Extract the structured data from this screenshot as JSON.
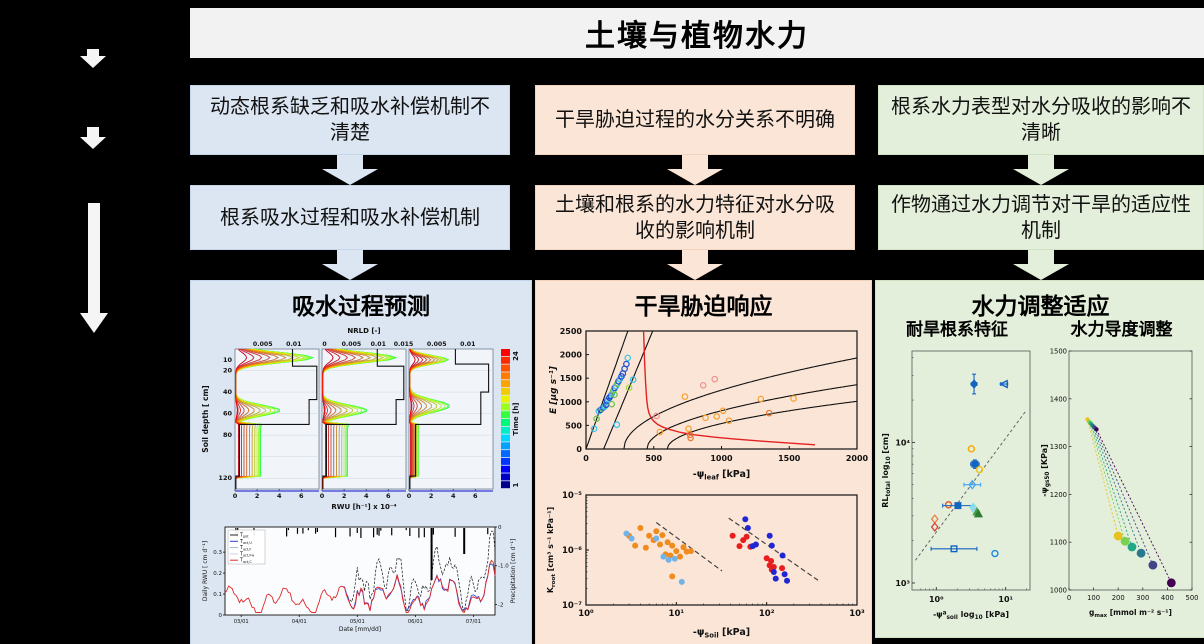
{
  "title": "土壤与植物水力",
  "theme_colors": {
    "blue": "#dce6f2",
    "peach": "#fbe5d6",
    "green": "#e3efda",
    "title_bar": "#f2f2f2",
    "background": "#000000"
  },
  "columns": [
    {
      "theme_color": "#dce6f2",
      "problem": "动态根系缺乏和吸水补偿机制不清楚",
      "mechanism": "根系吸水过程和吸水补偿机制",
      "panel_title": "吸水过程预测"
    },
    {
      "theme_color": "#fbe5d6",
      "problem": "干旱胁迫过程的水分关系不明确",
      "mechanism": "土壤和根系的水力特征对水分吸收的影响机制",
      "panel_title": "干旱胁迫响应"
    },
    {
      "theme_color": "#e3efda",
      "problem": "根系水力表型对水分吸收的影响不清晰",
      "mechanism": "作物通过水力调节对干旱的适应性机制",
      "panel_title": "水力调整适应",
      "sub_titles": [
        "耐旱根系特征",
        "水力导度调整"
      ]
    }
  ],
  "chart_data": {
    "rwu_profiles": {
      "type": "line",
      "top_axis_label": "NRLD [-]",
      "top_ticks": [
        [
          "0.005",
          "0.01"
        ],
        [
          "0",
          "0.005",
          "0.01",
          "0.015"
        ],
        [
          "0.005",
          "0.01"
        ]
      ],
      "top_tick_fracs": [
        [
          0.33,
          0.7
        ],
        [
          0.03,
          0.35,
          0.67,
          0.97
        ],
        [
          0.33,
          0.7
        ]
      ],
      "ylabel": "Soil depth [ cm]",
      "yticks": [
        10,
        20,
        40,
        60,
        80,
        120
      ],
      "ymax": 130,
      "xlabel": "RWU [h⁻¹] x 10⁻⁴",
      "xticks": [
        0,
        2,
        4,
        6
      ],
      "xmax": 7.6,
      "n_times": 24,
      "colorbar": {
        "label": "Time [h]",
        "top": "24",
        "bottom": "1"
      },
      "black_profiles": [
        [
          [
            5.2,
            0
          ],
          [
            5.2,
            16
          ],
          [
            7.4,
            16
          ],
          [
            7.4,
            47
          ],
          [
            6.7,
            47
          ],
          [
            6.7,
            70
          ],
          [
            0.4,
            70
          ],
          [
            0.4,
            118
          ],
          [
            0.08,
            118
          ],
          [
            0.08,
            130
          ]
        ],
        [
          [
            5.0,
            0
          ],
          [
            5.0,
            16
          ],
          [
            7.4,
            16
          ],
          [
            7.4,
            47
          ],
          [
            6.7,
            47
          ],
          [
            6.7,
            70
          ],
          [
            0.4,
            70
          ],
          [
            0.4,
            118
          ],
          [
            0.08,
            118
          ],
          [
            0.08,
            130
          ]
        ],
        [
          [
            4.2,
            0
          ],
          [
            4.2,
            14
          ],
          [
            7.2,
            14
          ],
          [
            7.2,
            40
          ],
          [
            6.5,
            40
          ],
          [
            6.5,
            70
          ],
          [
            0.6,
            70
          ],
          [
            0.6,
            118
          ],
          [
            0.08,
            118
          ],
          [
            0.08,
            130
          ]
        ]
      ]
    },
    "daily_rwu": {
      "type": "line",
      "ylabel_left": "Daily RWU [ cm d⁻¹]",
      "ylabel_right": "Precipitation [cm d⁻¹]",
      "xlabel": "Date [mm/dd]",
      "xticks": [
        "03/01",
        "04/01",
        "05/01",
        "06/01",
        "07/01"
      ],
      "yticks_left": [
        0,
        0.1,
        0.2,
        0.3
      ],
      "yticks_right": [
        "0",
        "-1.0",
        "-2"
      ],
      "legend": [
        {
          "label": "T",
          "sub": "pot",
          "color": "#222222"
        },
        {
          "label": "T",
          "sub": "act,U",
          "color": "#2f3bd3"
        },
        {
          "label": "T",
          "sub": "act,F",
          "color": "#9fb6c9"
        },
        {
          "label": "T",
          "sub": "act,Fw",
          "color": "#c9d4e2"
        },
        {
          "label": "T",
          "sub": "act,C",
          "color": "#e02929"
        }
      ],
      "series_colors": {
        "potential": "#111111",
        "actual": "#2f3bd3",
        "control": "#e02929"
      }
    },
    "transpiration": {
      "type": "scatter",
      "ylabel": "E [μg s⁻¹]",
      "xlabel_parts": [
        [
          "-ψ",
          0
        ],
        [
          "leaf",
          1
        ],
        [
          " [kPa]",
          0
        ]
      ],
      "xlim": [
        0,
        2000
      ],
      "ylim": [
        0,
        2500
      ],
      "xticks": [
        0,
        500,
        1000,
        1500,
        2000
      ],
      "yticks": [
        0,
        500,
        1000,
        1500,
        2000,
        2500
      ],
      "black_curves": [
        {
          "kind": "lin",
          "x0": 0,
          "k": 8.1
        },
        {
          "kind": "lin",
          "x0": 130,
          "k": 6.9
        },
        {
          "kind": "sqrt",
          "x0": 280,
          "k": 46.5
        },
        {
          "kind": "sqrt",
          "x0": 450,
          "k": 34.6
        },
        {
          "kind": "sqrt",
          "x0": 600,
          "k": 27
        }
      ],
      "red_curve": [
        [
          425,
          2500
        ],
        [
          432,
          1900
        ],
        [
          440,
          1400
        ],
        [
          448,
          1050
        ],
        [
          455,
          880
        ],
        [
          465,
          760
        ],
        [
          480,
          660
        ],
        [
          500,
          590
        ],
        [
          530,
          520
        ],
        [
          570,
          460
        ],
        [
          620,
          410
        ],
        [
          700,
          350
        ],
        [
          800,
          300
        ],
        [
          950,
          250
        ],
        [
          1100,
          210
        ],
        [
          1300,
          165
        ],
        [
          1500,
          125
        ],
        [
          1690,
          90
        ]
      ],
      "points": [
        [
          60,
          430,
          "#35c3ef"
        ],
        [
          78,
          640,
          "#6abf4b"
        ],
        [
          95,
          800,
          "#35c3ef"
        ],
        [
          108,
          830,
          "#1e50d2"
        ],
        [
          118,
          860,
          "#6abf4b"
        ],
        [
          128,
          880,
          "#1e50d2"
        ],
        [
          138,
          900,
          "#35c3ef"
        ],
        [
          148,
          935,
          "#1e50d2"
        ],
        [
          155,
          1015,
          "#1e50d2"
        ],
        [
          163,
          1055,
          "#35c3ef"
        ],
        [
          172,
          1085,
          "#1e50d2"
        ],
        [
          182,
          1125,
          "#1e50d2"
        ],
        [
          192,
          1175,
          "#35c3ef"
        ],
        [
          202,
          1235,
          "#6abf4b"
        ],
        [
          212,
          1295,
          "#1e50d2"
        ],
        [
          222,
          1335,
          "#35c3ef"
        ],
        [
          232,
          1385,
          "#6abf4b"
        ],
        [
          240,
          1435,
          "#1e50d2"
        ],
        [
          250,
          1480,
          "#35c3ef"
        ],
        [
          262,
          1540,
          "#1e50d2"
        ],
        [
          272,
          1600,
          "#1e50d2"
        ],
        [
          285,
          1700,
          "#1e50d2"
        ],
        [
          298,
          1800,
          "#1e50d2"
        ],
        [
          308,
          1930,
          "#35c3ef"
        ],
        [
          228,
          515,
          "#35c3ef"
        ],
        [
          318,
          1300,
          "#9ade3b"
        ],
        [
          348,
          1470,
          "#35c3ef"
        ],
        [
          210,
          1150,
          "#6abf4b"
        ],
        [
          190,
          950,
          "#6abf4b"
        ],
        [
          520,
          700,
          "#f0908d"
        ],
        [
          545,
          360,
          "#f5a033"
        ],
        [
          730,
          1110,
          "#f5a033"
        ],
        [
          757,
          430,
          "#f5a033"
        ],
        [
          768,
          300,
          "#e8762c"
        ],
        [
          772,
          235,
          "#e8762c"
        ],
        [
          865,
          1350,
          "#f0908d"
        ],
        [
          882,
          660,
          "#f5a033"
        ],
        [
          950,
          1480,
          "#f0908d"
        ],
        [
          965,
          690,
          "#f5a033"
        ],
        [
          1012,
          810,
          "#f5a033"
        ],
        [
          1055,
          600,
          "#f5a033"
        ],
        [
          1290,
          1060,
          "#f5a033"
        ],
        [
          1352,
          760,
          "#e8762c"
        ],
        [
          1532,
          1070,
          "#f5a033"
        ]
      ]
    },
    "kroot": {
      "type": "scatter",
      "xlabel_parts": [
        [
          "-ψ",
          0
        ],
        [
          "Soil",
          1
        ],
        [
          " [kPa]",
          0
        ]
      ],
      "ylabel_parts": [
        [
          "K",
          0
        ],
        [
          "root",
          1
        ],
        [
          " [cm³ s⁻¹ kPa⁻¹]",
          0
        ]
      ],
      "xticks": [
        "10⁰",
        "10¹",
        "10²",
        "10³"
      ],
      "yticks": [
        "10⁻⁵",
        "10⁻⁶",
        "10⁻⁷"
      ],
      "groups": [
        {
          "color": "#f08c1e",
          "points": [
            [
              3,
              -5.74
            ],
            [
              3.5,
              -5.92
            ],
            [
              4,
              -5.6
            ],
            [
              4.6,
              -5.96
            ],
            [
              5,
              -5.74
            ],
            [
              5.6,
              -5.82
            ],
            [
              6,
              -5.66
            ],
            [
              6.6,
              -5.9
            ],
            [
              7,
              -5.73
            ],
            [
              7.6,
              -6.08
            ],
            [
              8,
              -5.86
            ],
            [
              8.6,
              -6.1
            ],
            [
              9,
              -5.92
            ],
            [
              9,
              -6.48
            ],
            [
              10,
              -6.02
            ],
            [
              11,
              -6.12
            ],
            [
              12,
              -5.95
            ],
            [
              13,
              -6.03
            ],
            [
              14.5,
              -6.02
            ]
          ]
        },
        {
          "color": "#74b3e8",
          "points": [
            [
              2.8,
              -5.7
            ],
            [
              3.2,
              -5.79
            ],
            [
              6,
              -5.79
            ],
            [
              7.2,
              -6.12
            ],
            [
              8.2,
              -6.18
            ],
            [
              9.6,
              -6.16
            ],
            [
              11.5,
              -6.58
            ]
          ]
        },
        {
          "color": "#e81e1e",
          "points": [
            [
              42,
              -5.74
            ],
            [
              50,
              -5.93
            ],
            [
              55,
              -5.82
            ],
            [
              60,
              -5.76
            ],
            [
              66,
              -5.94
            ],
            [
              100,
              -6.15
            ],
            [
              108,
              -6.28
            ],
            [
              114,
              -6.36
            ],
            [
              120,
              -6.31
            ],
            [
              148,
              -6.33
            ],
            [
              112,
              -6.2
            ]
          ]
        },
        {
          "color": "#2026d4",
          "points": [
            [
              58,
              -5.44
            ],
            [
              62,
              -5.6
            ],
            [
              70,
              -5.93
            ],
            [
              76,
              -5.9
            ],
            [
              108,
              -5.74
            ],
            [
              114,
              -5.92
            ],
            [
              120,
              -6.4
            ],
            [
              126,
              -6.52
            ],
            [
              158,
              -6.44
            ],
            [
              168,
              -6.56
            ],
            [
              150,
              -6.1
            ]
          ]
        }
      ],
      "dashed_lines": [
        [
          [
            6,
            -5.5
          ],
          [
            32,
            -6.38
          ]
        ],
        [
          [
            38,
            -5.42
          ],
          [
            370,
            -6.55
          ]
        ]
      ]
    },
    "root_traits": {
      "type": "scatter",
      "xlabel_parts": [
        [
          "-ψ",
          0
        ],
        [
          "a",
          2
        ],
        [
          "soil",
          1
        ],
        [
          " log",
          0
        ],
        [
          "10",
          1
        ],
        [
          " [kPa]",
          0
        ]
      ],
      "ylabel_parts": [
        [
          "RL",
          0
        ],
        [
          "total",
          1
        ],
        [
          "  log",
          0
        ],
        [
          "10",
          1
        ],
        [
          " [cm]",
          0
        ]
      ],
      "xticks": [
        "10⁰",
        "10¹"
      ],
      "yticks": [
        "10³",
        "10⁴"
      ],
      "trend": [
        [
          0.5,
          1450
        ],
        [
          20,
          17000
        ]
      ],
      "points": [
        {
          "x": 3.5,
          "y": 26000,
          "m": "d",
          "c": "#1565c0",
          "ey": 0.07,
          "ex": 0.04,
          "fill": 1
        },
        {
          "x": 9.5,
          "y": 26000,
          "m": "tl",
          "c": "#1565c0",
          "ex": 0.05
        },
        {
          "x": 3.2,
          "y": 9000,
          "m": "o",
          "c": "#f5a800"
        },
        {
          "x": 3.6,
          "y": 7000,
          "m": "s",
          "c": "#1565c0",
          "ex": 0.06,
          "ey": 0.03,
          "fill": 1
        },
        {
          "x": 4.2,
          "y": 6400,
          "m": "o",
          "c": "#f0c020"
        },
        {
          "x": 3.3,
          "y": 5000,
          "m": "d",
          "c": "#42a5f5",
          "ex": 0.12
        },
        {
          "x": 1.5,
          "y": 3600,
          "m": "o",
          "c": "#e05a2b"
        },
        {
          "x": 2.05,
          "y": 3550,
          "m": "s",
          "c": "#1565c0",
          "ex": 0.22,
          "fill": 1
        },
        {
          "x": 3.4,
          "y": 3450,
          "m": "d",
          "c": "#80deea",
          "fill": 1
        },
        {
          "x": 3.55,
          "y": 3300,
          "m": "d",
          "c": "#a5d6e7"
        },
        {
          "x": 3.85,
          "y": 3200,
          "m": "t",
          "c": "#43a047",
          "fill": 1
        },
        {
          "x": 4.05,
          "y": 3100,
          "m": "t",
          "c": "#2e7d32",
          "fill": 1
        },
        {
          "x": 0.95,
          "y": 2850,
          "m": "d",
          "c": "#ef7d45"
        },
        {
          "x": 0.95,
          "y": 2500,
          "m": "d",
          "c": "#d84336"
        },
        {
          "x": 1.8,
          "y": 1750,
          "m": "s",
          "c": "#1565c0",
          "ex": 0.33
        },
        {
          "x": 7,
          "y": 1620,
          "m": "o",
          "c": "#1e88e5"
        }
      ]
    },
    "conductance": {
      "type": "scatter",
      "xlabel_parts": [
        [
          "g",
          0
        ],
        [
          "max",
          1
        ],
        [
          " [mmol m⁻² s⁻¹]",
          0
        ]
      ],
      "ylabel_parts": [
        [
          "-ψ",
          0
        ],
        [
          "gs50",
          1
        ],
        [
          " [KPa]",
          0
        ]
      ],
      "xlim": [
        0,
        500
      ],
      "ylim": [
        1000,
        1500
      ],
      "xticks": [
        0,
        100,
        200,
        300,
        400,
        500
      ],
      "yticks": [
        1000,
        1100,
        1200,
        1300,
        1400,
        1500
      ],
      "upper": [
        [
          75,
          1357
        ],
        [
          82,
          1352
        ],
        [
          89,
          1348
        ],
        [
          96,
          1344
        ],
        [
          104,
          1340
        ],
        [
          112,
          1336
        ]
      ],
      "lower": [
        [
          200,
          1113
        ],
        [
          228,
          1102
        ],
        [
          256,
          1090
        ],
        [
          293,
          1077
        ],
        [
          341,
          1052
        ],
        [
          416,
          1015
        ]
      ],
      "colors": [
        "#e8c11c",
        "#7ad151",
        "#22a884",
        "#2a788e",
        "#414487",
        "#440154"
      ]
    }
  }
}
